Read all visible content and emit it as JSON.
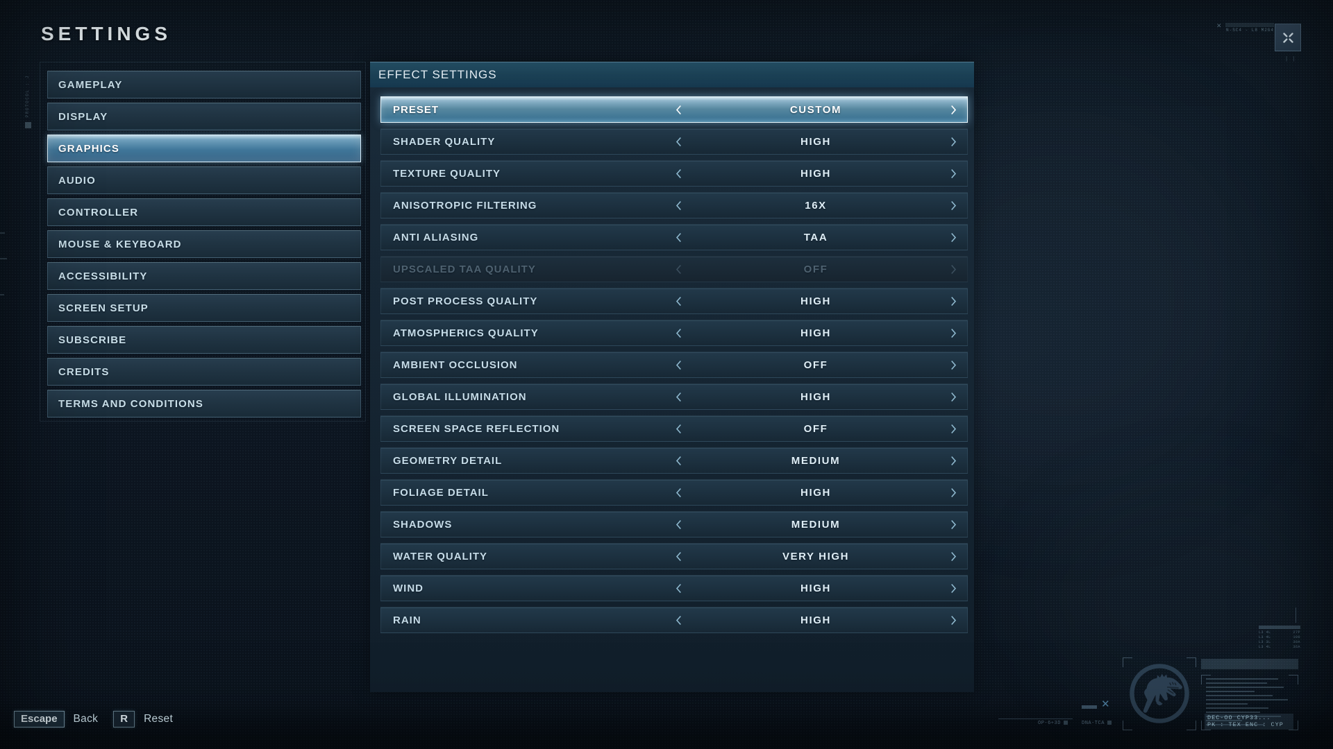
{
  "title": "SETTINGS",
  "top_right": {
    "decor_text": "N-SC4 - L8 M2G4"
  },
  "sidebar": {
    "items": [
      {
        "label": "GAMEPLAY",
        "active": false
      },
      {
        "label": "DISPLAY",
        "active": false
      },
      {
        "label": "GRAPHICS",
        "active": true
      },
      {
        "label": "AUDIO",
        "active": false
      },
      {
        "label": "CONTROLLER",
        "active": false
      },
      {
        "label": "MOUSE & KEYBOARD",
        "active": false
      },
      {
        "label": "ACCESSIBILITY",
        "active": false
      },
      {
        "label": "SCREEN SETUP",
        "active": false
      },
      {
        "label": "SUBSCRIBE",
        "active": false
      },
      {
        "label": "CREDITS",
        "active": false
      },
      {
        "label": "TERMS AND CONDITIONS",
        "active": false
      }
    ]
  },
  "panel": {
    "header": "EFFECT SETTINGS",
    "rows": [
      {
        "label": "PRESET",
        "value": "CUSTOM",
        "state": "selected"
      },
      {
        "label": "SHADER QUALITY",
        "value": "HIGH",
        "state": "normal"
      },
      {
        "label": "TEXTURE QUALITY",
        "value": "HIGH",
        "state": "normal"
      },
      {
        "label": "ANISOTROPIC FILTERING",
        "value": "16X",
        "state": "normal"
      },
      {
        "label": "ANTI ALIASING",
        "value": "TAA",
        "state": "normal"
      },
      {
        "label": "UPSCALED TAA QUALITY",
        "value": "OFF",
        "state": "disabled"
      },
      {
        "label": "POST PROCESS QUALITY",
        "value": "HIGH",
        "state": "normal"
      },
      {
        "label": "ATMOSPHERICS QUALITY",
        "value": "HIGH",
        "state": "normal"
      },
      {
        "label": "AMBIENT OCCLUSION",
        "value": "OFF",
        "state": "normal"
      },
      {
        "label": "GLOBAL ILLUMINATION",
        "value": "HIGH",
        "state": "normal"
      },
      {
        "label": "SCREEN SPACE REFLECTION",
        "value": "OFF",
        "state": "normal"
      },
      {
        "label": "GEOMETRY DETAIL",
        "value": "MEDIUM",
        "state": "normal"
      },
      {
        "label": "FOLIAGE DETAIL",
        "value": "HIGH",
        "state": "normal"
      },
      {
        "label": "SHADOWS",
        "value": "MEDIUM",
        "state": "normal"
      },
      {
        "label": "WATER QUALITY",
        "value": "VERY HIGH",
        "state": "normal"
      },
      {
        "label": "WIND",
        "value": "HIGH",
        "state": "normal"
      },
      {
        "label": "RAIN",
        "value": "HIGH",
        "state": "normal"
      }
    ]
  },
  "footer": {
    "escape_key": "Escape",
    "back_label": "Back",
    "reset_key": "R",
    "reset_label": "Reset"
  },
  "hud": {
    "left_vertical_text": "PROTOCOL : J",
    "stat_rows": [
      "L3 4L",
      "27P",
      "L3 4L",
      "100",
      "L3 3L",
      "30A",
      "L3 4L",
      "36A"
    ],
    "code_line1": "DEC-OO CYP33...",
    "code_line2": "PK : TEX  ENC : CYP",
    "tag1": "OP-6+3D",
    "tag2": "DNA-TCA"
  },
  "colors": {
    "accent": "#7fb5d4",
    "selected_row_top": "#cfe4ef",
    "selected_row_bottom": "#4784a6",
    "panel_header_bg": "#1b4156",
    "row_bg": "#1c303f",
    "background": "#0c1520"
  }
}
